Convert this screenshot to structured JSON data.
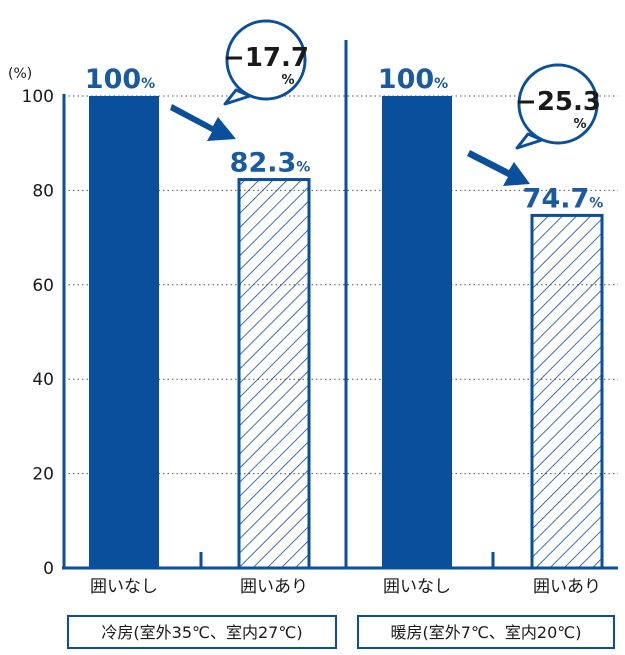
{
  "chart_data": {
    "type": "bar",
    "unit_label": "(%)",
    "ylim": [
      0,
      100
    ],
    "yticks": [
      "0",
      "20",
      "40",
      "60",
      "80",
      "100"
    ],
    "grid": true,
    "groups": [
      {
        "label": "冷房(室外35℃、室内27℃)",
        "bars": [
          {
            "category": "囲いなし",
            "value": 100,
            "value_label": "100",
            "style": "solid"
          },
          {
            "category": "囲いあり",
            "value": 82.3,
            "value_label": "82.3",
            "style": "hatched"
          }
        ],
        "change_label": "−17.7"
      },
      {
        "label": "暖房(室外7℃、室内20℃)",
        "bars": [
          {
            "category": "囲いなし",
            "value": 100,
            "value_label": "100",
            "style": "solid"
          },
          {
            "category": "囲いあり",
            "value": 74.7,
            "value_label": "74.7",
            "style": "hatched"
          }
        ],
        "change_label": "−25.3"
      }
    ],
    "percent_sign": "%",
    "colors": {
      "bar": "#0a4f9c",
      "accent": "#1a5aa0",
      "grid": "#555555"
    }
  }
}
